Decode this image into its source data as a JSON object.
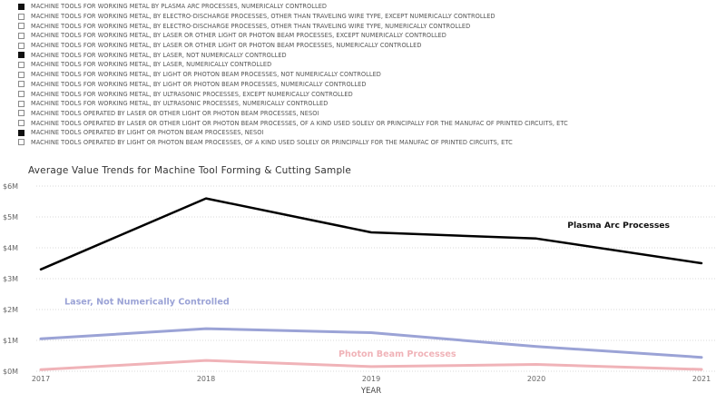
{
  "filters": [
    {
      "label": "MACHINE TOOLS FOR WORKING METAL BY PLASMA ARC PROCESSES, NUMERICALLY CONTROLLED",
      "checked": true
    },
    {
      "label": "MACHINE TOOLS FOR WORKING METAL, BY ELECTRO-DISCHARGE PROCESSES, OTHER THAN TRAVELING WIRE TYPE, EXCEPT NUMERICALLY CONTROLLED",
      "checked": false
    },
    {
      "label": "MACHINE TOOLS FOR WORKING METAL, BY ELECTRO-DISCHARGE PROCESSES, OTHER THAN TRAVELING WIRE TYPE, NUMERICALLY CONTROLLED",
      "checked": false
    },
    {
      "label": "MACHINE TOOLS FOR WORKING METAL, BY LASER OR OTHER LIGHT OR PHOTON BEAM PROCESSES, EXCEPT NUMERICALLY CONTROLLED",
      "checked": false
    },
    {
      "label": "MACHINE TOOLS FOR WORKING METAL, BY LASER OR OTHER LIGHT OR PHOTON BEAM PROCESSES, NUMERICALLY CONTROLLED",
      "checked": false
    },
    {
      "label": "MACHINE TOOLS FOR WORKING METAL, BY LASER, NOT NUMERICALLY CONTROLLED",
      "checked": true
    },
    {
      "label": "MACHINE TOOLS FOR WORKING METAL, BY LASER, NUMERICALLY CONTROLLED",
      "checked": false
    },
    {
      "label": "MACHINE TOOLS FOR WORKING METAL, BY LIGHT OR PHOTON BEAM PROCESSES, NOT NUMERICALLY CONTROLLED",
      "checked": false
    },
    {
      "label": "MACHINE TOOLS FOR WORKING METAL, BY LIGHT OR PHOTON BEAM PROCESSES, NUMERICALLY CONTROLLED",
      "checked": false
    },
    {
      "label": "MACHINE TOOLS FOR WORKING METAL, BY ULTRASONIC PROCESSES, EXCEPT NUMERICALLY CONTROLLED",
      "checked": false
    },
    {
      "label": "MACHINE TOOLS FOR WORKING METAL, BY ULTRASONIC PROCESSES, NUMERICALLY CONTROLLED",
      "checked": false
    },
    {
      "label": "MACHINE TOOLS OPERATED BY LASER OR OTHER LIGHT OR PHOTON BEAM PROCESSES, NESOI",
      "checked": false
    },
    {
      "label": "MACHINE TOOLS OPERATED BY LASER OR OTHER LIGHT OR PHOTON BEAM PROCESSES, OF A KIND USED SOLELY OR PRINCIPALLY FOR THE MANUFAC OF PRINTED CIRCUITS, ETC",
      "checked": false
    },
    {
      "label": "MACHINE TOOLS OPERATED BY LIGHT OR PHOTON BEAM PROCESSES, NESOI",
      "checked": true
    },
    {
      "label": "MACHINE TOOLS OPERATED BY LIGHT OR PHOTON BEAM PROCESSES, OF A KIND USED SOLELY OR PRINCIPALLY FOR THE MANUFAC OF PRINTED CIRCUITS, ETC",
      "checked": false
    }
  ],
  "chart_data": {
    "type": "line",
    "title": "Average Value Trends for Machine Tool Forming & Cutting Sample",
    "xlabel": "YEAR",
    "ylabel": "",
    "x": [
      "2017",
      "2018",
      "2019",
      "2020",
      "2021"
    ],
    "ylim": [
      0,
      6000000
    ],
    "yticks": [
      {
        "value": 0,
        "label": "$0M"
      },
      {
        "value": 1000000,
        "label": "$1M"
      },
      {
        "value": 2000000,
        "label": "$2M"
      },
      {
        "value": 3000000,
        "label": "$3M"
      },
      {
        "value": 4000000,
        "label": "$4M"
      },
      {
        "value": 5000000,
        "label": "$5M"
      },
      {
        "value": 6000000,
        "label": "$6M"
      }
    ],
    "grid": true,
    "series": [
      {
        "name": "Plasma Arc Processes",
        "color": "#000000",
        "values": [
          3300000,
          5600000,
          4500000,
          4300000,
          3500000
        ],
        "label_anchor_index": 4
      },
      {
        "name": "Laser, Not Numerically Controlled",
        "color": "#9ba3d6",
        "values": [
          1050000,
          1380000,
          1250000,
          800000,
          450000
        ],
        "label_anchor_index": 0
      },
      {
        "name": "Photon Beam Processes",
        "color": "#f0b3b8",
        "values": [
          50000,
          350000,
          150000,
          220000,
          60000
        ],
        "label_anchor_index": 2
      }
    ]
  }
}
